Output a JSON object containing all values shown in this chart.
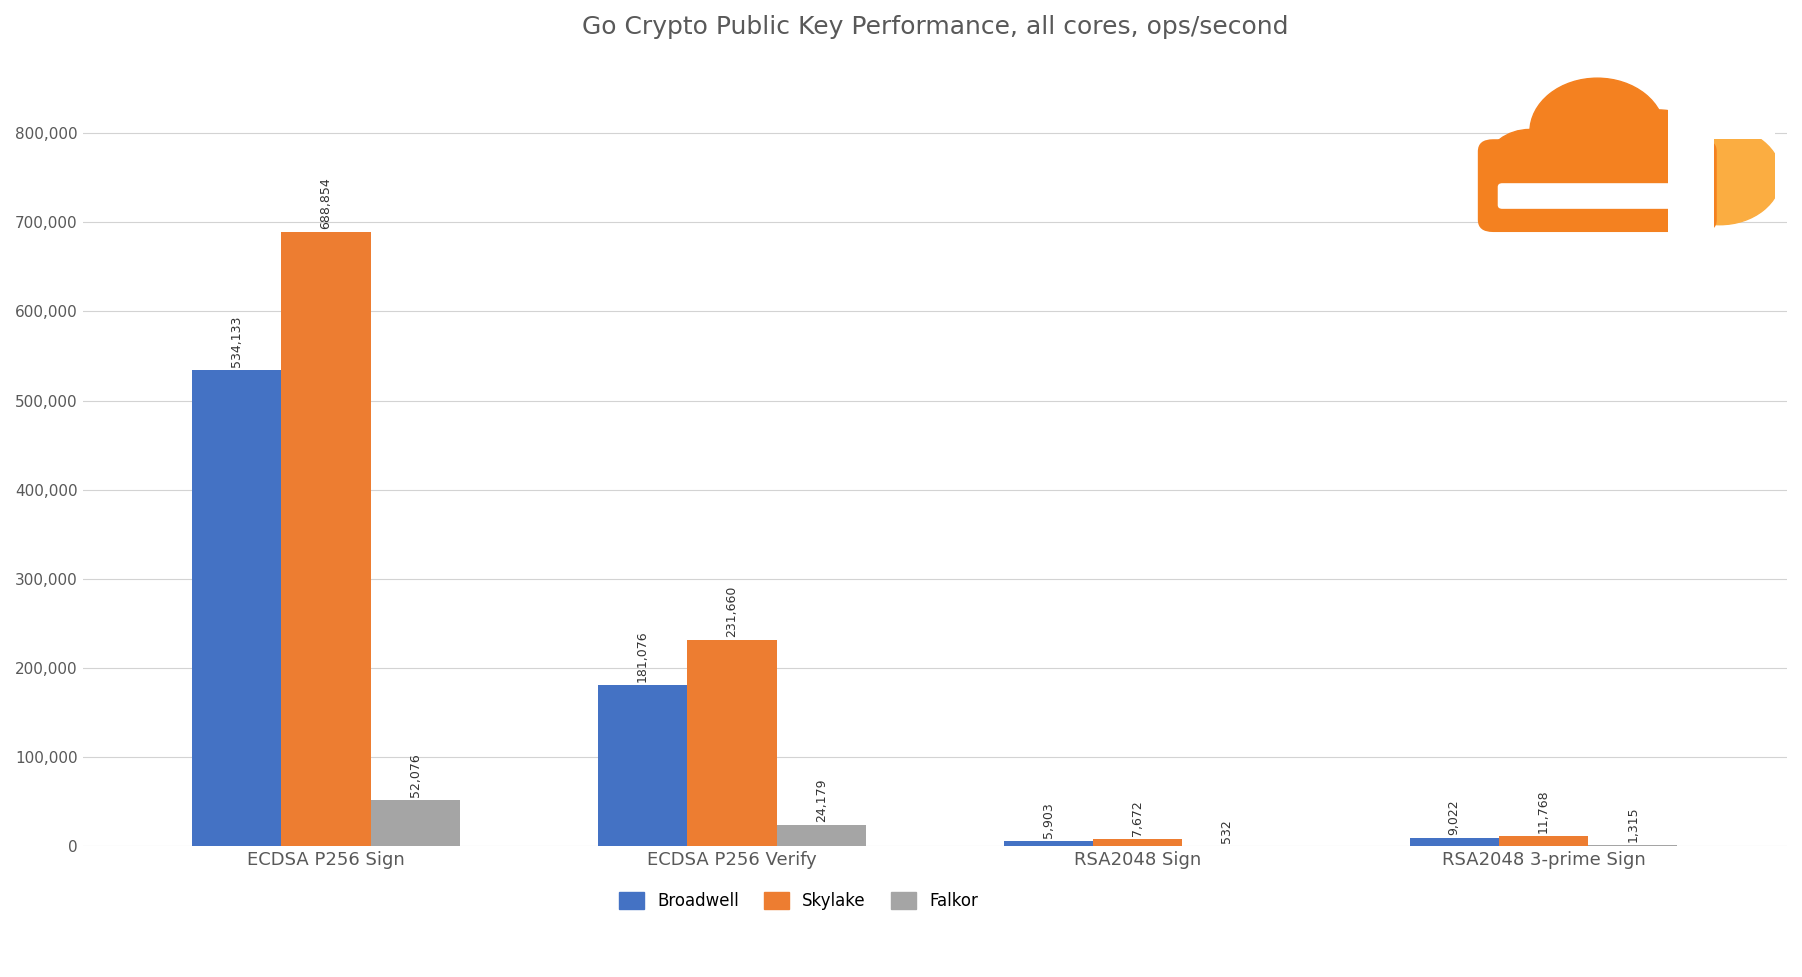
{
  "title": "Go Crypto Public Key Performance, all cores, ops/second",
  "categories": [
    "ECDSA P256 Sign",
    "ECDSA P256 Verify",
    "RSA2048 Sign",
    "RSA2048 3-prime Sign"
  ],
  "series": [
    {
      "name": "Broadwell",
      "color": "#4472C4",
      "values": [
        534133,
        181076,
        5903,
        9022
      ]
    },
    {
      "name": "Skylake",
      "color": "#ED7D31",
      "values": [
        688854,
        231660,
        7672,
        11768
      ]
    },
    {
      "name": "Falkor",
      "color": "#A5A5A5",
      "values": [
        52076,
        24179,
        532,
        1315
      ]
    }
  ],
  "ylim": [
    0,
    880000
  ],
  "yticks": [
    0,
    100000,
    200000,
    300000,
    400000,
    500000,
    600000,
    700000,
    800000
  ],
  "ytick_labels": [
    "0",
    "100,000",
    "200,000",
    "300,000",
    "400,000",
    "500,000",
    "600,000",
    "700,000",
    "800,000"
  ],
  "background_color": "#FFFFFF",
  "grid_color": "#D3D3D3",
  "title_fontsize": 18,
  "bar_width": 0.22,
  "title_color": "#595959",
  "tick_color": "#595959",
  "label_color": "#333333",
  "label_fontsize": 9,
  "xtick_fontsize": 13,
  "ytick_fontsize": 11,
  "legend_fontsize": 12,
  "cloud_color_main": "#F48120",
  "cloud_color_secondary": "#FBAD41"
}
